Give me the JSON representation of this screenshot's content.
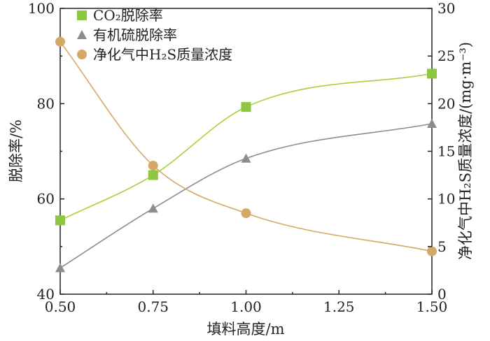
{
  "chart_data": {
    "type": "line",
    "x": [
      0.5,
      0.75,
      1.0,
      1.5
    ],
    "x_tick_labels": [
      "0.50",
      "0.75",
      "1.00",
      "1.25",
      "1.50"
    ],
    "xlim": [
      0.5,
      1.5
    ],
    "xlabel": "填料高度/m",
    "ylabel_left": "脱除率/%",
    "ylim_left": [
      40,
      100
    ],
    "y_left_ticks": [
      "40",
      "60",
      "80",
      "100"
    ],
    "ylabel_right": "净化气中H₂S质量浓度/(mg·m⁻³)",
    "ylim_right": [
      0,
      30
    ],
    "y_right_ticks": [
      "0",
      "5",
      "10",
      "15",
      "20",
      "25",
      "30"
    ],
    "grid": false,
    "legend_position": "top-left",
    "series": [
      {
        "name": "CO₂脱除率",
        "axis": "left",
        "marker": "square",
        "marker_color": "#8dc63f",
        "line_color": "#a6d23a",
        "values": [
          55.5,
          65.0,
          79.3,
          86.3
        ]
      },
      {
        "name": "有机硫脱除率",
        "axis": "left",
        "marker": "triangle",
        "marker_color": "#8c8c8c",
        "line_color": "#8c8c8c",
        "values": [
          45.5,
          58.0,
          68.5,
          75.8
        ]
      },
      {
        "name": "净化气中H₂S质量浓度",
        "axis": "right",
        "marker": "circle",
        "marker_color": "#d4a865",
        "line_color": "#d4a865",
        "values": [
          26.5,
          13.5,
          8.5,
          4.5
        ]
      }
    ]
  }
}
